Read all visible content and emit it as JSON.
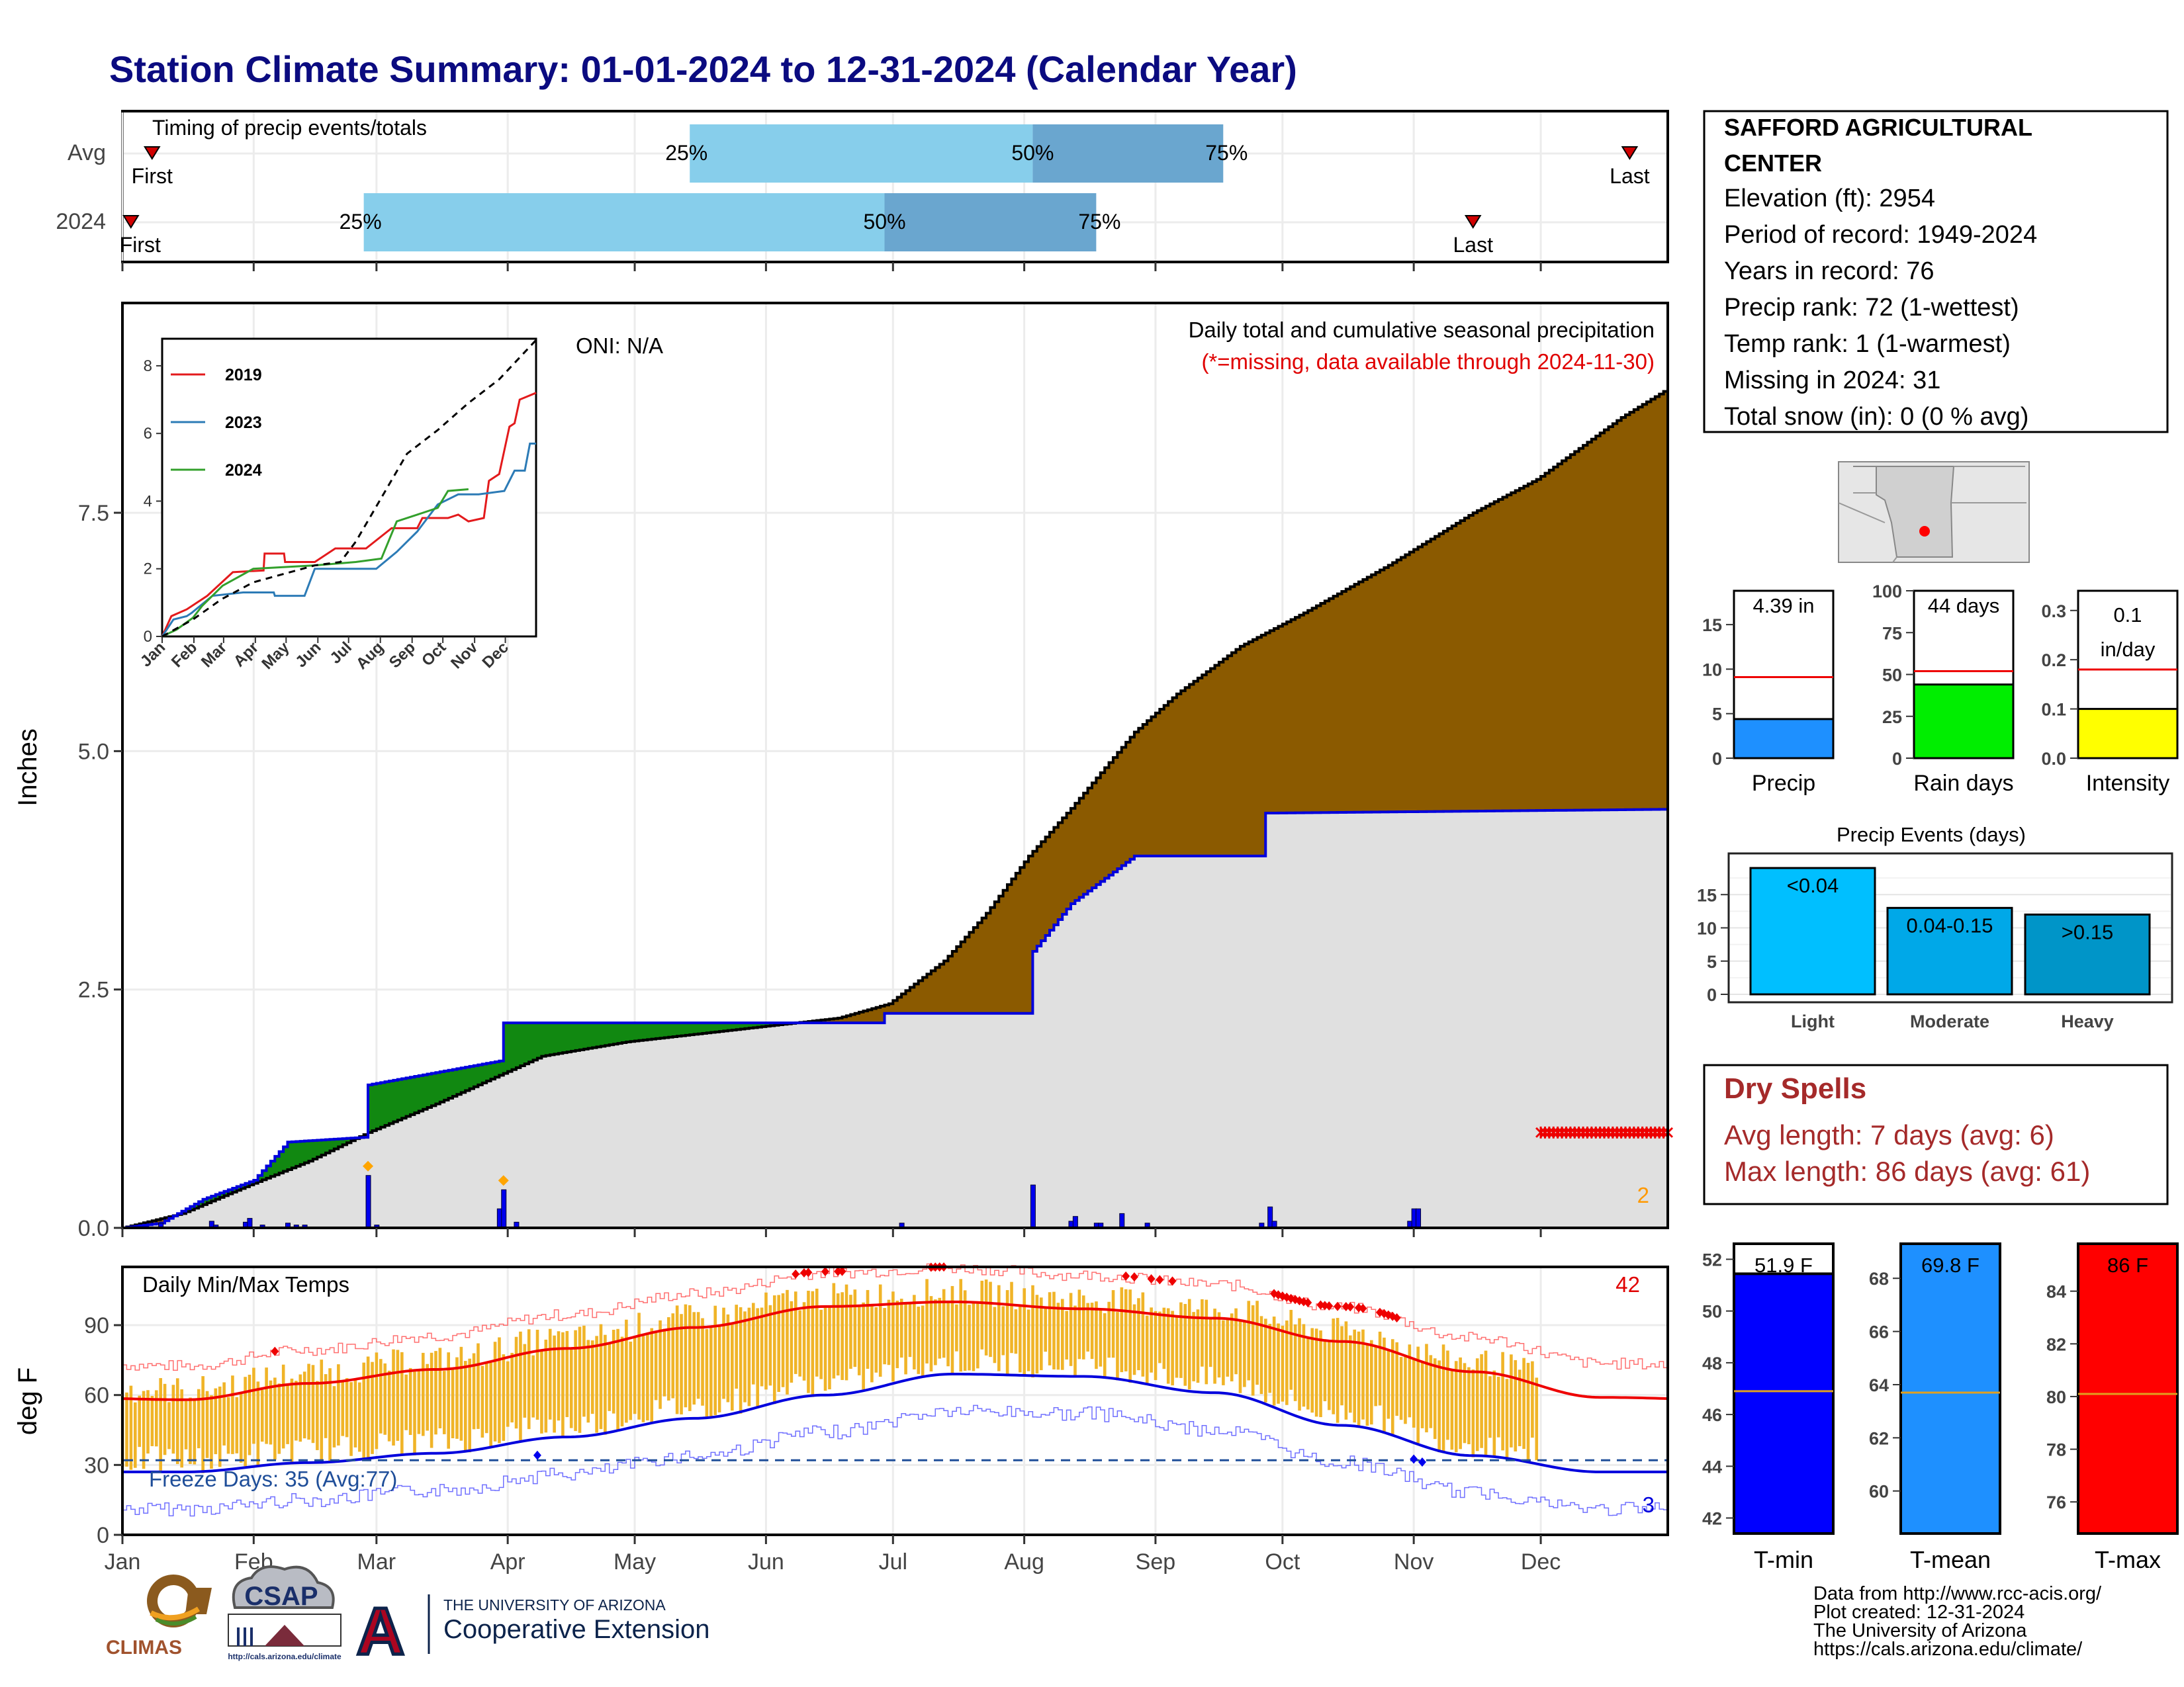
{
  "title": "Station Climate Summary: 01-01-2024 to 12-31-2024 (Calendar Year)",
  "colors": {
    "title": "#0b0b80",
    "precip_2024": "#8b5a00",
    "avg_fill": "#e0e0e0",
    "wetter": "#118811",
    "light_blue": "#87ceeb",
    "mid_blue": "#6aa6cf",
    "tmax_bar": "#f0b428",
    "dry_red": "#a52a2a"
  },
  "timing": {
    "label": "Timing of precip events/totals",
    "rows": [
      {
        "label": "Avg",
        "first": "First",
        "last": "Last",
        "p25": "25%",
        "p50": "50%",
        "p75": "75%",
        "first_day": 8,
        "last_day": 357,
        "d25": 135,
        "d50": 216,
        "d75": 261
      },
      {
        "label": "2024",
        "first": "First",
        "last": "Last",
        "p25": "25%",
        "p50": "50%",
        "p75": "75%",
        "first_day": 3,
        "last_day": 320,
        "d25": 58,
        "d50": 181,
        "d75": 231
      }
    ]
  },
  "station": {
    "name": "SAFFORD AGRICULTURAL CENTER",
    "elevation": "Elevation (ft): 2954",
    "period": "Period of record: 1949-2024",
    "years": "Years in record: 76",
    "precip_rank": "Precip rank: 72 (1-wettest)",
    "temp_rank": "Temp rank: 1 (1-warmest)",
    "missing": "Missing in 2024: 31",
    "snow": "Total snow (in): 0 (0 % avg)"
  },
  "precip_panel": {
    "title": "Daily total and cumulative seasonal precipitation",
    "note": "(*=missing, data available through 2024-11-30)",
    "oni": "ONI: N/A",
    "ylabel": "Inches",
    "y_ticks": [
      "0.0",
      "2.5",
      "5.0",
      "7.5"
    ],
    "corner_count": "2"
  },
  "inset": {
    "y_ticks": [
      "0",
      "2",
      "4",
      "6",
      "8"
    ],
    "months": [
      "Jan",
      "Feb",
      "Mar",
      "Apr",
      "May",
      "Jun",
      "Jul",
      "Aug",
      "Sep",
      "Oct",
      "Nov",
      "Dec"
    ],
    "legend": [
      "2019",
      "2023",
      "2024"
    ],
    "colors": [
      "#e31a1c",
      "#2c7bb6",
      "#33a02c"
    ]
  },
  "mini": {
    "precip": {
      "label": "Precip",
      "value": "4.39 in",
      "ticks": [
        "0",
        "5",
        "10",
        "15"
      ]
    },
    "rain": {
      "label": "Rain days",
      "value": "44 days",
      "ticks": [
        "0",
        "25",
        "50",
        "75",
        "100"
      ]
    },
    "intensity": {
      "label": "Intensity",
      "value": "0.1",
      "unit": "in/day",
      "ticks": [
        "0.0",
        "0.1",
        "0.2",
        "0.3"
      ]
    }
  },
  "events": {
    "title": "Precip Events (days)",
    "ticks": [
      "0",
      "5",
      "10",
      "15"
    ],
    "categories": [
      "Light",
      "Moderate",
      "Heavy"
    ],
    "labels": [
      "<0.04",
      "0.04-0.15",
      ">0.15"
    ]
  },
  "dry": {
    "title": "Dry Spells",
    "avg": "Avg length: 7 days (avg: 6)",
    "max": "Max length: 86 days (avg: 61)"
  },
  "temp_panel": {
    "title": "Daily Min/Max Temps",
    "ylabel": "deg F",
    "y_ticks": [
      "0",
      "30",
      "60",
      "90"
    ],
    "hot_count": "42",
    "cold_count": "3",
    "freeze": "Freeze Days: 35 (Avg:77)"
  },
  "months": [
    "Jan",
    "Feb",
    "Mar",
    "Apr",
    "May",
    "Jun",
    "Jul",
    "Aug",
    "Sep",
    "Oct",
    "Nov",
    "Dec"
  ],
  "tbars": {
    "tmin": {
      "label": "T-min",
      "value": "51.9 F",
      "ticks": [
        "42",
        "44",
        "46",
        "48",
        "50",
        "52"
      ]
    },
    "tmean": {
      "label": "T-mean",
      "value": "69.8 F",
      "ticks": [
        "60",
        "62",
        "64",
        "66",
        "68"
      ]
    },
    "tmax": {
      "label": "T-max",
      "value": "86 F",
      "ticks": [
        "76",
        "78",
        "80",
        "82",
        "84"
      ]
    }
  },
  "credits": [
    "Data from http://www.rcc-acis.org/",
    "Plot created: 12-31-2024",
    "The University of Arizona",
    "https://cals.arizona.edu/climate/"
  ],
  "logos": {
    "climas": "CLIMAS",
    "csap": "CSAP",
    "csap_url": "http://cals.arizona.edu/climate",
    "ua_small": "THE UNIVERSITY OF ARIZONA",
    "ua_big": "Cooperative Extension",
    "ua_letter": "A"
  },
  "chart_data": [
    {
      "type": "area",
      "title": "Daily total and cumulative seasonal precipitation",
      "ylabel": "Inches",
      "ylim": [
        0,
        9.7
      ],
      "x": [
        "Jan",
        "Feb",
        "Mar",
        "Apr",
        "May",
        "Jun",
        "Jul",
        "Aug",
        "Sep",
        "Oct",
        "Nov",
        "Dec"
      ],
      "series": [
        {
          "name": "cumulative average (day, in)",
          "points": [
            [
              1,
              0
            ],
            [
              15,
              0.15
            ],
            [
              31,
              0.45
            ],
            [
              45,
              0.7
            ],
            [
              59,
              1.0
            ],
            [
              75,
              1.3
            ],
            [
              90,
              1.6
            ],
            [
              100,
              1.8
            ],
            [
              120,
              1.95
            ],
            [
              150,
              2.1
            ],
            [
              170,
              2.2
            ],
            [
              182,
              2.35
            ],
            [
              195,
              2.8
            ],
            [
              205,
              3.3
            ],
            [
              215,
              3.9
            ],
            [
              225,
              4.4
            ],
            [
              240,
              5.2
            ],
            [
              250,
              5.6
            ],
            [
              265,
              6.1
            ],
            [
              280,
              6.45
            ],
            [
              300,
              6.95
            ],
            [
              320,
              7.5
            ],
            [
              335,
              7.85
            ],
            [
              355,
              8.5
            ],
            [
              366,
              8.8
            ]
          ]
        },
        {
          "name": "cumulative 2024 (day, in)",
          "points": [
            [
              1,
              0
            ],
            [
              10,
              0.05
            ],
            [
              20,
              0.3
            ],
            [
              32,
              0.5
            ],
            [
              40,
              0.9
            ],
            [
              58,
              0.95
            ],
            [
              59,
              1.5
            ],
            [
              90,
              1.75
            ],
            [
              91,
              2.15
            ],
            [
              150,
              2.15
            ],
            [
              180,
              2.15
            ],
            [
              181,
              2.25
            ],
            [
              215,
              2.25
            ],
            [
              216,
              2.9
            ],
            [
              225,
              3.4
            ],
            [
              240,
              3.9
            ],
            [
              270,
              3.9
            ],
            [
              271,
              4.35
            ],
            [
              366,
              4.39
            ]
          ]
        }
      ]
    },
    {
      "type": "line",
      "title": "Daily Min/Max Temps",
      "ylabel": "deg F",
      "ylim": [
        0,
        115
      ],
      "x": [
        "Jan",
        "Feb",
        "Mar",
        "Apr",
        "May",
        "Jun",
        "Jul",
        "Aug",
        "Sep",
        "Oct",
        "Nov",
        "Dec"
      ],
      "series": [
        {
          "name": "avg max",
          "values": [
            58,
            65,
            71,
            80,
            89,
            98,
            100,
            97,
            93,
            83,
            70,
            59
          ]
        },
        {
          "name": "avg min",
          "values": [
            27,
            31,
            35,
            42,
            50,
            60,
            69,
            68,
            61,
            47,
            34,
            27
          ]
        }
      ]
    },
    {
      "type": "bar",
      "title": "Precip Events (days)",
      "categories": [
        "Light",
        "Moderate",
        "Heavy"
      ],
      "values": [
        19,
        13,
        12
      ]
    },
    {
      "type": "bar",
      "categories": [
        "Precip",
        "Rain days",
        "Intensity"
      ],
      "values": [
        4.39,
        44,
        0.1
      ],
      "averages": [
        9.1,
        52,
        0.18
      ]
    },
    {
      "type": "bar",
      "categories": [
        "T-min",
        "T-mean",
        "T-max"
      ],
      "values": [
        51.9,
        69.8,
        86
      ],
      "averages": [
        46.9,
        63.7,
        80.1
      ]
    }
  ]
}
